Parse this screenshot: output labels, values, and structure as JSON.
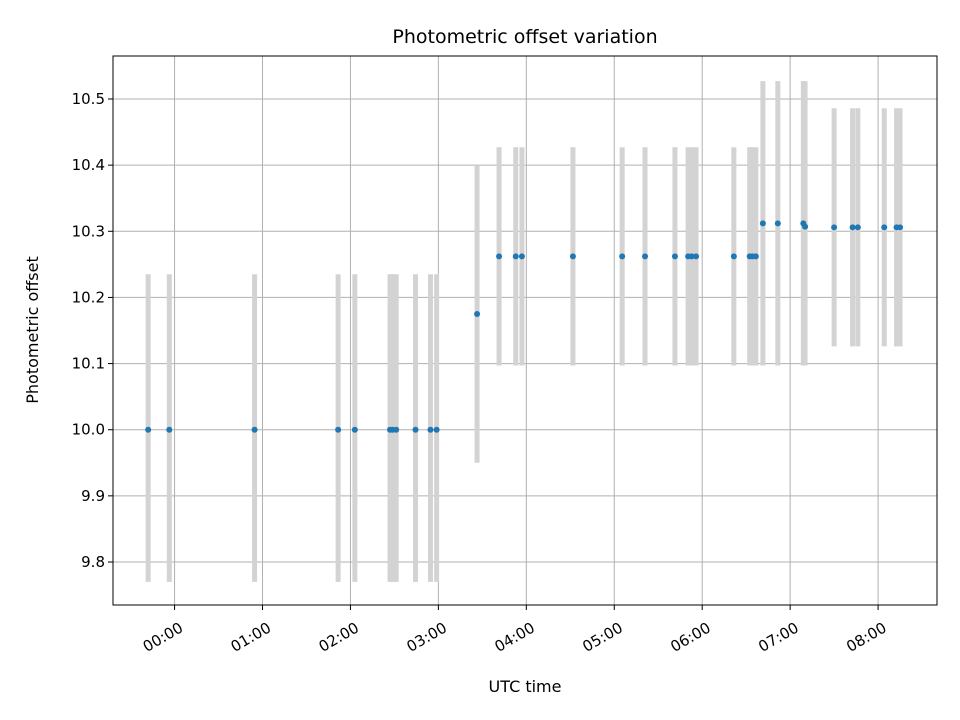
{
  "chart_data": {
    "type": "scatter",
    "title": "Photometric offset variation",
    "xlabel": "UTC time",
    "ylabel": "Photometric offset",
    "grid": true,
    "x_ticks": [
      "00:00",
      "01:00",
      "02:00",
      "03:00",
      "04:00",
      "05:00",
      "06:00",
      "07:00",
      "08:00"
    ],
    "x_tick_hours": [
      0,
      1,
      2,
      3,
      4,
      5,
      6,
      7,
      8
    ],
    "y_ticks": [
      9.8,
      9.9,
      10.0,
      10.1,
      10.2,
      10.3,
      10.4,
      10.5
    ],
    "xlim_hours": [
      -0.7,
      8.67
    ],
    "ylim": [
      9.735,
      10.565
    ],
    "point_color": "#1f77b4",
    "errorbar_color": "#d3d3d3",
    "points": [
      {
        "t": -0.3,
        "y": 10.0,
        "lo": 9.77,
        "hi": 10.235
      },
      {
        "t": -0.06,
        "y": 10.0,
        "lo": 9.77,
        "hi": 10.235
      },
      {
        "t": 0.91,
        "y": 10.0,
        "lo": 9.77,
        "hi": 10.235
      },
      {
        "t": 1.86,
        "y": 10.0,
        "lo": 9.77,
        "hi": 10.235
      },
      {
        "t": 2.05,
        "y": 10.0,
        "lo": 9.77,
        "hi": 10.235
      },
      {
        "t": 2.45,
        "y": 10.0,
        "lo": 9.77,
        "hi": 10.235
      },
      {
        "t": 2.48,
        "y": 10.0,
        "lo": 9.77,
        "hi": 10.235
      },
      {
        "t": 2.52,
        "y": 10.0,
        "lo": 9.77,
        "hi": 10.235
      },
      {
        "t": 2.74,
        "y": 10.0,
        "lo": 9.77,
        "hi": 10.235
      },
      {
        "t": 2.91,
        "y": 10.0,
        "lo": 9.77,
        "hi": 10.235
      },
      {
        "t": 2.98,
        "y": 10.0,
        "lo": 9.77,
        "hi": 10.235
      },
      {
        "t": 3.44,
        "y": 10.175,
        "lo": 9.95,
        "hi": 10.4
      },
      {
        "t": 3.69,
        "y": 10.262,
        "lo": 10.097,
        "hi": 10.427
      },
      {
        "t": 3.88,
        "y": 10.262,
        "lo": 10.097,
        "hi": 10.427
      },
      {
        "t": 3.95,
        "y": 10.262,
        "lo": 10.097,
        "hi": 10.427
      },
      {
        "t": 4.53,
        "y": 10.262,
        "lo": 10.097,
        "hi": 10.427
      },
      {
        "t": 5.09,
        "y": 10.262,
        "lo": 10.097,
        "hi": 10.427
      },
      {
        "t": 5.35,
        "y": 10.262,
        "lo": 10.097,
        "hi": 10.427
      },
      {
        "t": 5.69,
        "y": 10.262,
        "lo": 10.097,
        "hi": 10.427
      },
      {
        "t": 5.84,
        "y": 10.262,
        "lo": 10.097,
        "hi": 10.427
      },
      {
        "t": 5.88,
        "y": 10.262,
        "lo": 10.097,
        "hi": 10.427
      },
      {
        "t": 5.93,
        "y": 10.262,
        "lo": 10.097,
        "hi": 10.427
      },
      {
        "t": 6.36,
        "y": 10.262,
        "lo": 10.097,
        "hi": 10.427
      },
      {
        "t": 6.54,
        "y": 10.262,
        "lo": 10.097,
        "hi": 10.427
      },
      {
        "t": 6.57,
        "y": 10.262,
        "lo": 10.097,
        "hi": 10.427
      },
      {
        "t": 6.61,
        "y": 10.262,
        "lo": 10.097,
        "hi": 10.427
      },
      {
        "t": 6.69,
        "y": 10.312,
        "lo": 10.097,
        "hi": 10.527
      },
      {
        "t": 6.86,
        "y": 10.312,
        "lo": 10.097,
        "hi": 10.527
      },
      {
        "t": 7.15,
        "y": 10.312,
        "lo": 10.097,
        "hi": 10.527
      },
      {
        "t": 7.17,
        "y": 10.307,
        "lo": 10.097,
        "hi": 10.527
      },
      {
        "t": 7.5,
        "y": 10.306,
        "lo": 10.126,
        "hi": 10.486
      },
      {
        "t": 7.71,
        "y": 10.306,
        "lo": 10.126,
        "hi": 10.486
      },
      {
        "t": 7.77,
        "y": 10.306,
        "lo": 10.126,
        "hi": 10.486
      },
      {
        "t": 8.07,
        "y": 10.306,
        "lo": 10.126,
        "hi": 10.486
      },
      {
        "t": 8.21,
        "y": 10.306,
        "lo": 10.126,
        "hi": 10.486
      },
      {
        "t": 8.25,
        "y": 10.306,
        "lo": 10.126,
        "hi": 10.486
      }
    ]
  }
}
